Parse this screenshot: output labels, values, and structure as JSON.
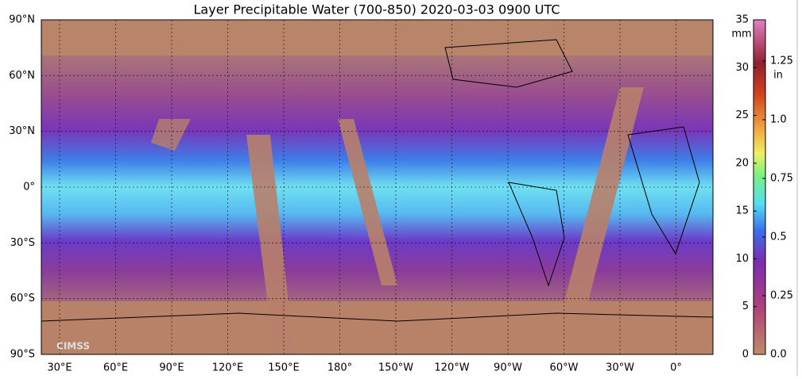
{
  "title": "Layer Precipitable Water (700-850)  2020-03-03 0900 UTC",
  "map": {
    "lat_labels": [
      "90°N",
      "60°N",
      "30°N",
      "0°",
      "30°S",
      "60°S",
      "90°S"
    ],
    "lon_labels": [
      "30°E",
      "60°E",
      "90°E",
      "120°E",
      "150°E",
      "180°",
      "150°W",
      "120°W",
      "90°W",
      "60°W",
      "30°W",
      "0°"
    ]
  },
  "colorbar": {
    "mm_unit": "mm",
    "mm_labels": [
      "35",
      "30",
      "25",
      "20",
      "15",
      "10",
      "5",
      "0"
    ],
    "in_unit": "in",
    "in_labels": [
      "1.25",
      "1.0",
      "0.75",
      "0.5",
      "0.25",
      "0.0"
    ]
  },
  "logo": "CIMSS"
}
